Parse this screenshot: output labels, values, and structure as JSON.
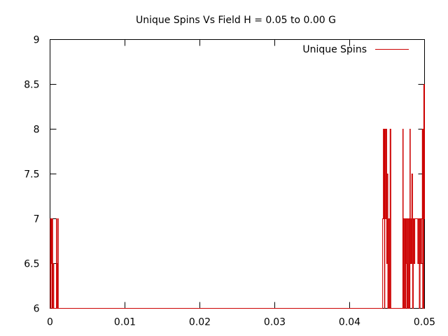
{
  "chart_data": {
    "type": "line",
    "title": "Unique Spins Vs Field H = 0.05 to 0.00 G",
    "xlabel": "",
    "ylabel": "",
    "xlim": [
      0,
      0.05
    ],
    "ylim": [
      6,
      9
    ],
    "x_ticks": [
      "0",
      "0.01",
      "0.02",
      "0.03",
      "0.04",
      "0.05"
    ],
    "y_ticks": [
      "6",
      "6.5",
      "7",
      "7.5",
      "8",
      "8.5",
      "9"
    ],
    "grid": false,
    "legend_position": "top-right",
    "series": [
      {
        "name": "Unique Spins",
        "color": "#cc0000",
        "points": [
          [
            0.0,
            7.0
          ],
          [
            5e-05,
            6.0
          ],
          [
            0.0001,
            7.0
          ],
          [
            0.00015,
            6.5
          ],
          [
            0.0002,
            7.0
          ],
          [
            0.00025,
            6.0
          ],
          [
            0.0003,
            7.0
          ],
          [
            0.00035,
            6.0
          ],
          [
            0.0004,
            6.5
          ],
          [
            0.0005,
            6.0
          ],
          [
            0.0007,
            6.0
          ],
          [
            0.00085,
            7.0
          ],
          [
            0.0009,
            6.0
          ],
          [
            0.00095,
            6.5
          ],
          [
            0.001,
            6.0
          ],
          [
            0.00105,
            7.0
          ],
          [
            0.0011,
            6.0
          ],
          [
            0.0012,
            6.0
          ],
          [
            0.0443,
            6.0
          ],
          [
            0.0444,
            7.0
          ],
          [
            0.0445,
            8.0
          ],
          [
            0.04455,
            7.0
          ],
          [
            0.0446,
            8.0
          ],
          [
            0.04465,
            6.0
          ],
          [
            0.0447,
            8.0
          ],
          [
            0.0448,
            7.0
          ],
          [
            0.0449,
            8.0
          ],
          [
            0.04495,
            6.5
          ],
          [
            0.045,
            7.5
          ],
          [
            0.0451,
            6.0
          ],
          [
            0.0452,
            7.0
          ],
          [
            0.0453,
            6.0
          ],
          [
            0.0454,
            8.0
          ],
          [
            0.0455,
            6.0
          ],
          [
            0.047,
            6.0
          ],
          [
            0.0471,
            8.0
          ],
          [
            0.04715,
            6.0
          ],
          [
            0.0472,
            7.0
          ],
          [
            0.0473,
            6.0
          ],
          [
            0.0474,
            7.0
          ],
          [
            0.04745,
            6.0
          ],
          [
            0.0475,
            7.0
          ],
          [
            0.0476,
            6.5
          ],
          [
            0.04765,
            6.0
          ],
          [
            0.0477,
            7.0
          ],
          [
            0.0478,
            6.0
          ],
          [
            0.0479,
            7.0
          ],
          [
            0.048,
            6.0
          ],
          [
            0.04805,
            8.0
          ],
          [
            0.0481,
            6.5
          ],
          [
            0.0482,
            7.0
          ],
          [
            0.04825,
            6.5
          ],
          [
            0.0483,
            7.5
          ],
          [
            0.0484,
            6.0
          ],
          [
            0.0485,
            7.0
          ],
          [
            0.0486,
            6.5
          ],
          [
            0.0487,
            7.0
          ],
          [
            0.049,
            7.0
          ],
          [
            0.0491,
            6.5
          ],
          [
            0.0492,
            7.0
          ],
          [
            0.0493,
            6.0
          ],
          [
            0.0494,
            7.0
          ],
          [
            0.0495,
            6.5
          ],
          [
            0.0496,
            7.0
          ],
          [
            0.0497,
            8.0
          ],
          [
            0.04975,
            6.0
          ],
          [
            0.0498,
            8.0
          ],
          [
            0.04985,
            6.0
          ],
          [
            0.0499,
            8.5
          ],
          [
            0.04995,
            7.0
          ],
          [
            0.05,
            8.5
          ]
        ]
      }
    ]
  }
}
